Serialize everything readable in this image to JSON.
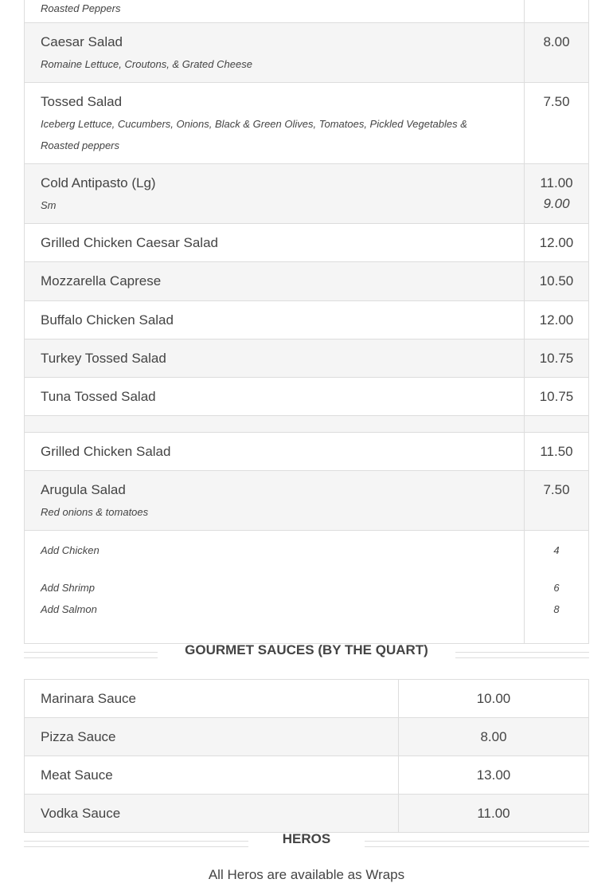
{
  "salads": {
    "partial_desc": "Roasted Peppers",
    "items": [
      {
        "name": "Caesar Salad",
        "desc": "Romaine Lettuce, Croutons, & Grated Cheese",
        "price": "8.00"
      },
      {
        "name": "Tossed Salad",
        "desc": "Iceberg Lettuce, Cucumbers, Onions, Black & Green Olives, Tomatoes, Pickled Vegetables & Roasted peppers",
        "price": "7.50"
      },
      {
        "name": "Cold Antipasto (Lg)",
        "desc": "Sm",
        "price": "11.00",
        "price2": "9.00"
      },
      {
        "name": "Grilled Chicken Caesar Salad",
        "price": "12.00"
      },
      {
        "name": "Mozzarella Caprese",
        "price": "10.50"
      },
      {
        "name": "Buffalo Chicken Salad",
        "price": "12.00"
      },
      {
        "name": "Turkey Tossed Salad",
        "price": "10.75"
      },
      {
        "name": "Tuna Tossed Salad",
        "price": "10.75"
      },
      {
        "name": "Grilled Chicken Salad",
        "price": "11.50"
      },
      {
        "name": "Arugula Salad",
        "desc": "Red onions & tomatoes",
        "price": "7.50"
      }
    ],
    "addons": [
      {
        "name": "Add Chicken",
        "price": "4"
      },
      {
        "name": "Add Shrimp",
        "price": "6"
      },
      {
        "name": "Add Salmon",
        "price": "8"
      }
    ]
  },
  "sauces": {
    "title": "GOURMET SAUCES (BY THE QUART)",
    "items": [
      {
        "name": "Marinara Sauce",
        "price": "10.00"
      },
      {
        "name": "Pizza Sauce",
        "price": "8.00"
      },
      {
        "name": "Meat Sauce",
        "price": "13.00"
      },
      {
        "name": "Vodka Sauce",
        "price": "11.00"
      }
    ]
  },
  "heros": {
    "title": "HEROS",
    "note": "All Heros are available as Wraps"
  }
}
